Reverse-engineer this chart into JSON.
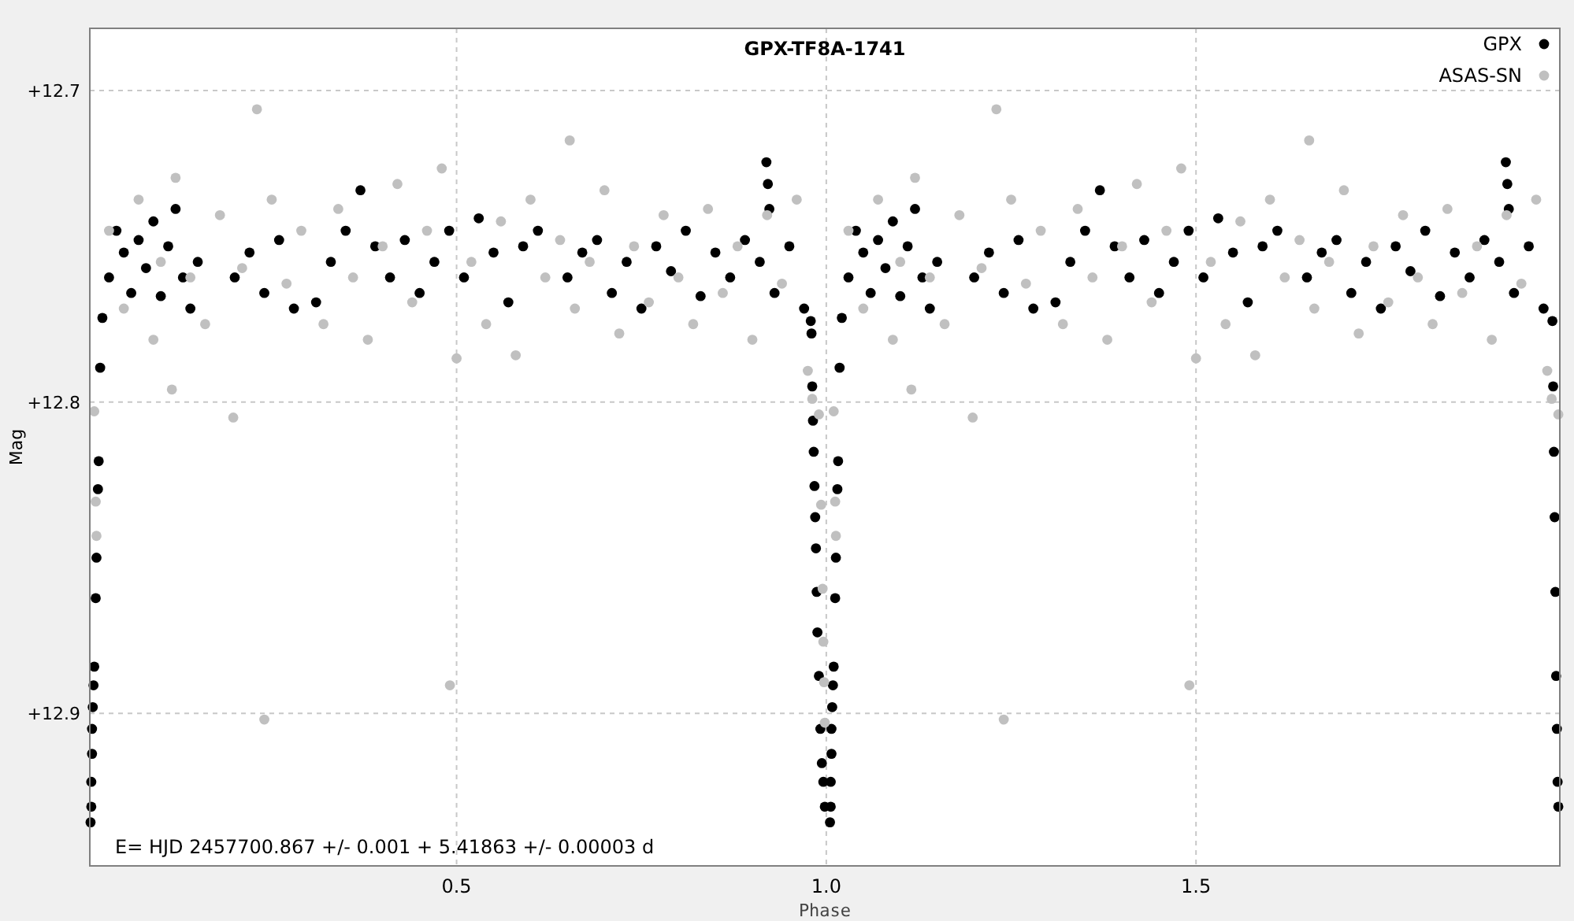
{
  "chart_data": {
    "type": "scatter",
    "title": "GPX-TF8A-1741",
    "xlabel": "Phase",
    "ylabel": "Mag",
    "xlim": [
      0.004,
      1.992
    ],
    "ylim": [
      12.949,
      12.68
    ],
    "xticks": [
      0.5,
      {
        "value": 1,
        "label": "1.0"
      },
      1.5
    ],
    "yticks": [
      {
        "value": 12.7,
        "label": "+12.7"
      },
      {
        "value": 12.8,
        "label": "+12.8"
      },
      {
        "value": 12.9,
        "label": "+12.9"
      }
    ],
    "grid": true,
    "legend": "top right",
    "marker": "circle",
    "annotations": [
      "E= HJD 2457700.867 +/- 0.001 + 5.41863 +/- 0.00003 d"
    ],
    "series": [
      {
        "name": "GPX",
        "color": "#000000",
        "x": [
          0.005,
          0.006,
          0.006,
          0.007,
          0.007,
          0.008,
          0.009,
          0.01,
          0.012,
          0.013,
          0.015,
          0.016,
          0.018,
          0.021,
          0.03,
          0.04,
          0.05,
          0.06,
          0.07,
          0.08,
          0.09,
          0.1,
          0.11,
          0.12,
          0.13,
          0.14,
          0.15,
          0.2,
          0.22,
          0.24,
          0.26,
          0.28,
          0.31,
          0.33,
          0.35,
          0.37,
          0.39,
          0.41,
          0.43,
          0.45,
          0.47,
          0.49,
          0.51,
          0.53,
          0.55,
          0.57,
          0.59,
          0.61,
          0.65,
          0.67,
          0.69,
          0.71,
          0.73,
          0.75,
          0.77,
          0.79,
          0.81,
          0.83,
          0.85,
          0.87,
          0.89,
          0.91,
          0.919,
          0.921,
          0.923,
          0.93,
          0.95,
          0.97,
          0.979,
          0.98,
          0.981,
          0.982,
          0.983,
          0.984,
          0.985,
          0.986,
          0.987,
          0.988,
          0.99,
          0.992,
          0.994,
          0.996,
          0.998,
          1.005,
          1.006,
          1.006,
          1.007,
          1.007,
          1.008,
          1.009,
          1.01,
          1.012,
          1.013,
          1.015,
          1.016,
          1.018,
          1.021,
          1.03,
          1.04,
          1.05,
          1.06,
          1.07,
          1.08,
          1.09,
          1.1,
          1.11,
          1.12,
          1.13,
          1.14,
          1.15,
          1.2,
          1.22,
          1.24,
          1.26,
          1.28,
          1.31,
          1.33,
          1.35,
          1.37,
          1.39,
          1.41,
          1.43,
          1.45,
          1.47,
          1.49,
          1.51,
          1.53,
          1.55,
          1.57,
          1.59,
          1.61,
          1.65,
          1.67,
          1.69,
          1.71,
          1.73,
          1.75,
          1.77,
          1.79,
          1.81,
          1.83,
          1.85,
          1.87,
          1.89,
          1.91,
          1.919,
          1.921,
          1.923,
          1.93,
          1.95,
          1.97,
          1.982,
          1.983,
          1.984,
          1.985,
          1.986,
          1.987,
          1.988,
          1.989,
          1.99
        ],
        "values": [
          12.935,
          12.93,
          12.922,
          12.913,
          12.905,
          12.898,
          12.891,
          12.885,
          12.863,
          12.85,
          12.828,
          12.819,
          12.789,
          12.773,
          12.76,
          12.745,
          12.752,
          12.765,
          12.748,
          12.757,
          12.742,
          12.766,
          12.75,
          12.738,
          12.76,
          12.77,
          12.755,
          12.76,
          12.752,
          12.765,
          12.748,
          12.77,
          12.768,
          12.755,
          12.745,
          12.732,
          12.75,
          12.76,
          12.748,
          12.765,
          12.755,
          12.745,
          12.76,
          12.741,
          12.752,
          12.768,
          12.75,
          12.745,
          12.76,
          12.752,
          12.748,
          12.765,
          12.755,
          12.77,
          12.75,
          12.758,
          12.745,
          12.766,
          12.752,
          12.76,
          12.748,
          12.755,
          12.723,
          12.73,
          12.738,
          12.765,
          12.75,
          12.77,
          12.774,
          12.778,
          12.795,
          12.806,
          12.816,
          12.827,
          12.837,
          12.847,
          12.861,
          12.874,
          12.888,
          12.905,
          12.916,
          12.922,
          12.93,
          12.935,
          12.93,
          12.922,
          12.913,
          12.905,
          12.898,
          12.891,
          12.885,
          12.863,
          12.85,
          12.828,
          12.819,
          12.789,
          12.773,
          12.76,
          12.745,
          12.752,
          12.765,
          12.748,
          12.757,
          12.742,
          12.766,
          12.75,
          12.738,
          12.76,
          12.77,
          12.755,
          12.76,
          12.752,
          12.765,
          12.748,
          12.77,
          12.768,
          12.755,
          12.745,
          12.732,
          12.75,
          12.76,
          12.748,
          12.765,
          12.755,
          12.745,
          12.76,
          12.741,
          12.752,
          12.768,
          12.75,
          12.745,
          12.76,
          12.752,
          12.748,
          12.765,
          12.755,
          12.77,
          12.75,
          12.758,
          12.745,
          12.766,
          12.752,
          12.76,
          12.748,
          12.755,
          12.723,
          12.73,
          12.738,
          12.765,
          12.75,
          12.77,
          12.774,
          12.795,
          12.816,
          12.837,
          12.861,
          12.888,
          12.905,
          12.922,
          12.93
        ]
      },
      {
        "name": "ASAS-SN",
        "color": "#c0c0c0",
        "x": [
          0.01,
          0.012,
          0.013,
          0.03,
          0.05,
          0.07,
          0.09,
          0.1,
          0.115,
          0.12,
          0.14,
          0.16,
          0.18,
          0.198,
          0.21,
          0.23,
          0.24,
          0.25,
          0.27,
          0.29,
          0.32,
          0.34,
          0.36,
          0.38,
          0.4,
          0.42,
          0.44,
          0.46,
          0.48,
          0.491,
          0.5,
          0.52,
          0.54,
          0.56,
          0.58,
          0.6,
          0.62,
          0.64,
          0.653,
          0.66,
          0.68,
          0.7,
          0.72,
          0.74,
          0.76,
          0.78,
          0.8,
          0.82,
          0.84,
          0.86,
          0.88,
          0.9,
          0.92,
          0.94,
          0.96,
          0.975,
          0.981,
          0.99,
          0.993,
          0.995,
          0.996,
          0.997,
          0.998,
          1.01,
          1.012,
          1.013,
          1.03,
          1.05,
          1.07,
          1.09,
          1.1,
          1.115,
          1.12,
          1.14,
          1.16,
          1.18,
          1.198,
          1.21,
          1.23,
          1.24,
          1.25,
          1.27,
          1.29,
          1.32,
          1.34,
          1.36,
          1.38,
          1.4,
          1.42,
          1.44,
          1.46,
          1.48,
          1.491,
          1.5,
          1.52,
          1.54,
          1.56,
          1.58,
          1.6,
          1.62,
          1.64,
          1.653,
          1.66,
          1.68,
          1.7,
          1.72,
          1.74,
          1.76,
          1.78,
          1.8,
          1.82,
          1.84,
          1.86,
          1.88,
          1.9,
          1.92,
          1.94,
          1.96,
          1.975,
          1.981,
          1.99
        ],
        "values": [
          12.803,
          12.832,
          12.843,
          12.745,
          12.77,
          12.735,
          12.78,
          12.755,
          12.796,
          12.728,
          12.76,
          12.775,
          12.74,
          12.805,
          12.757,
          12.706,
          12.902,
          12.735,
          12.762,
          12.745,
          12.775,
          12.738,
          12.76,
          12.78,
          12.75,
          12.73,
          12.768,
          12.745,
          12.725,
          12.891,
          12.786,
          12.755,
          12.775,
          12.742,
          12.785,
          12.735,
          12.76,
          12.748,
          12.716,
          12.77,
          12.755,
          12.732,
          12.778,
          12.75,
          12.768,
          12.74,
          12.76,
          12.775,
          12.738,
          12.765,
          12.75,
          12.78,
          12.74,
          12.762,
          12.735,
          12.79,
          12.799,
          12.804,
          12.833,
          12.86,
          12.877,
          12.89,
          12.903,
          12.803,
          12.832,
          12.843,
          12.745,
          12.77,
          12.735,
          12.78,
          12.755,
          12.796,
          12.728,
          12.76,
          12.775,
          12.74,
          12.805,
          12.757,
          12.706,
          12.902,
          12.735,
          12.762,
          12.745,
          12.775,
          12.738,
          12.76,
          12.78,
          12.75,
          12.73,
          12.768,
          12.745,
          12.725,
          12.891,
          12.786,
          12.755,
          12.775,
          12.742,
          12.785,
          12.735,
          12.76,
          12.748,
          12.716,
          12.77,
          12.755,
          12.732,
          12.778,
          12.75,
          12.768,
          12.74,
          12.76,
          12.775,
          12.738,
          12.765,
          12.75,
          12.78,
          12.74,
          12.762,
          12.735,
          12.79,
          12.799,
          12.804
        ]
      }
    ]
  }
}
